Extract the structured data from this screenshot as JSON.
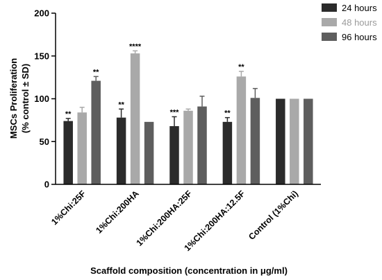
{
  "chart_data": {
    "type": "bar",
    "xlabel": "Scaffold composition (concentration in μg/ml)",
    "ylabel_line1": "MSCs Proliferation",
    "ylabel_line2": "(% control ± SD)",
    "ylim": [
      0,
      200
    ],
    "yticks": [
      "0",
      "50",
      "100",
      "150",
      "200"
    ],
    "categories": [
      "1%Chi:25F",
      "1%Chi:200HA",
      "1%Chi:200HA:25F",
      "1%Chi:200HA:12.5F",
      "Control (1%Chi)"
    ],
    "legend_position": "top-right",
    "series": [
      {
        "name": "24 hours",
        "color": "#2b2b2b",
        "values": [
          74,
          78,
          68,
          73,
          100
        ],
        "errors": [
          3,
          10,
          11,
          5,
          0
        ],
        "sig": [
          "**",
          "**",
          "***",
          "**",
          ""
        ]
      },
      {
        "name": "48 hours",
        "color": "#a9a9a9",
        "values": [
          84,
          153,
          86,
          126,
          100
        ],
        "errors": [
          6,
          3,
          2,
          6,
          0
        ],
        "sig": [
          "",
          "****",
          "",
          "**",
          ""
        ]
      },
      {
        "name": "96 hours",
        "color": "#5e5e5e",
        "values": [
          121,
          73,
          91,
          101,
          100
        ],
        "errors": [
          5,
          0,
          12,
          11,
          0
        ],
        "sig": [
          "**",
          "",
          "",
          "",
          ""
        ]
      }
    ]
  }
}
